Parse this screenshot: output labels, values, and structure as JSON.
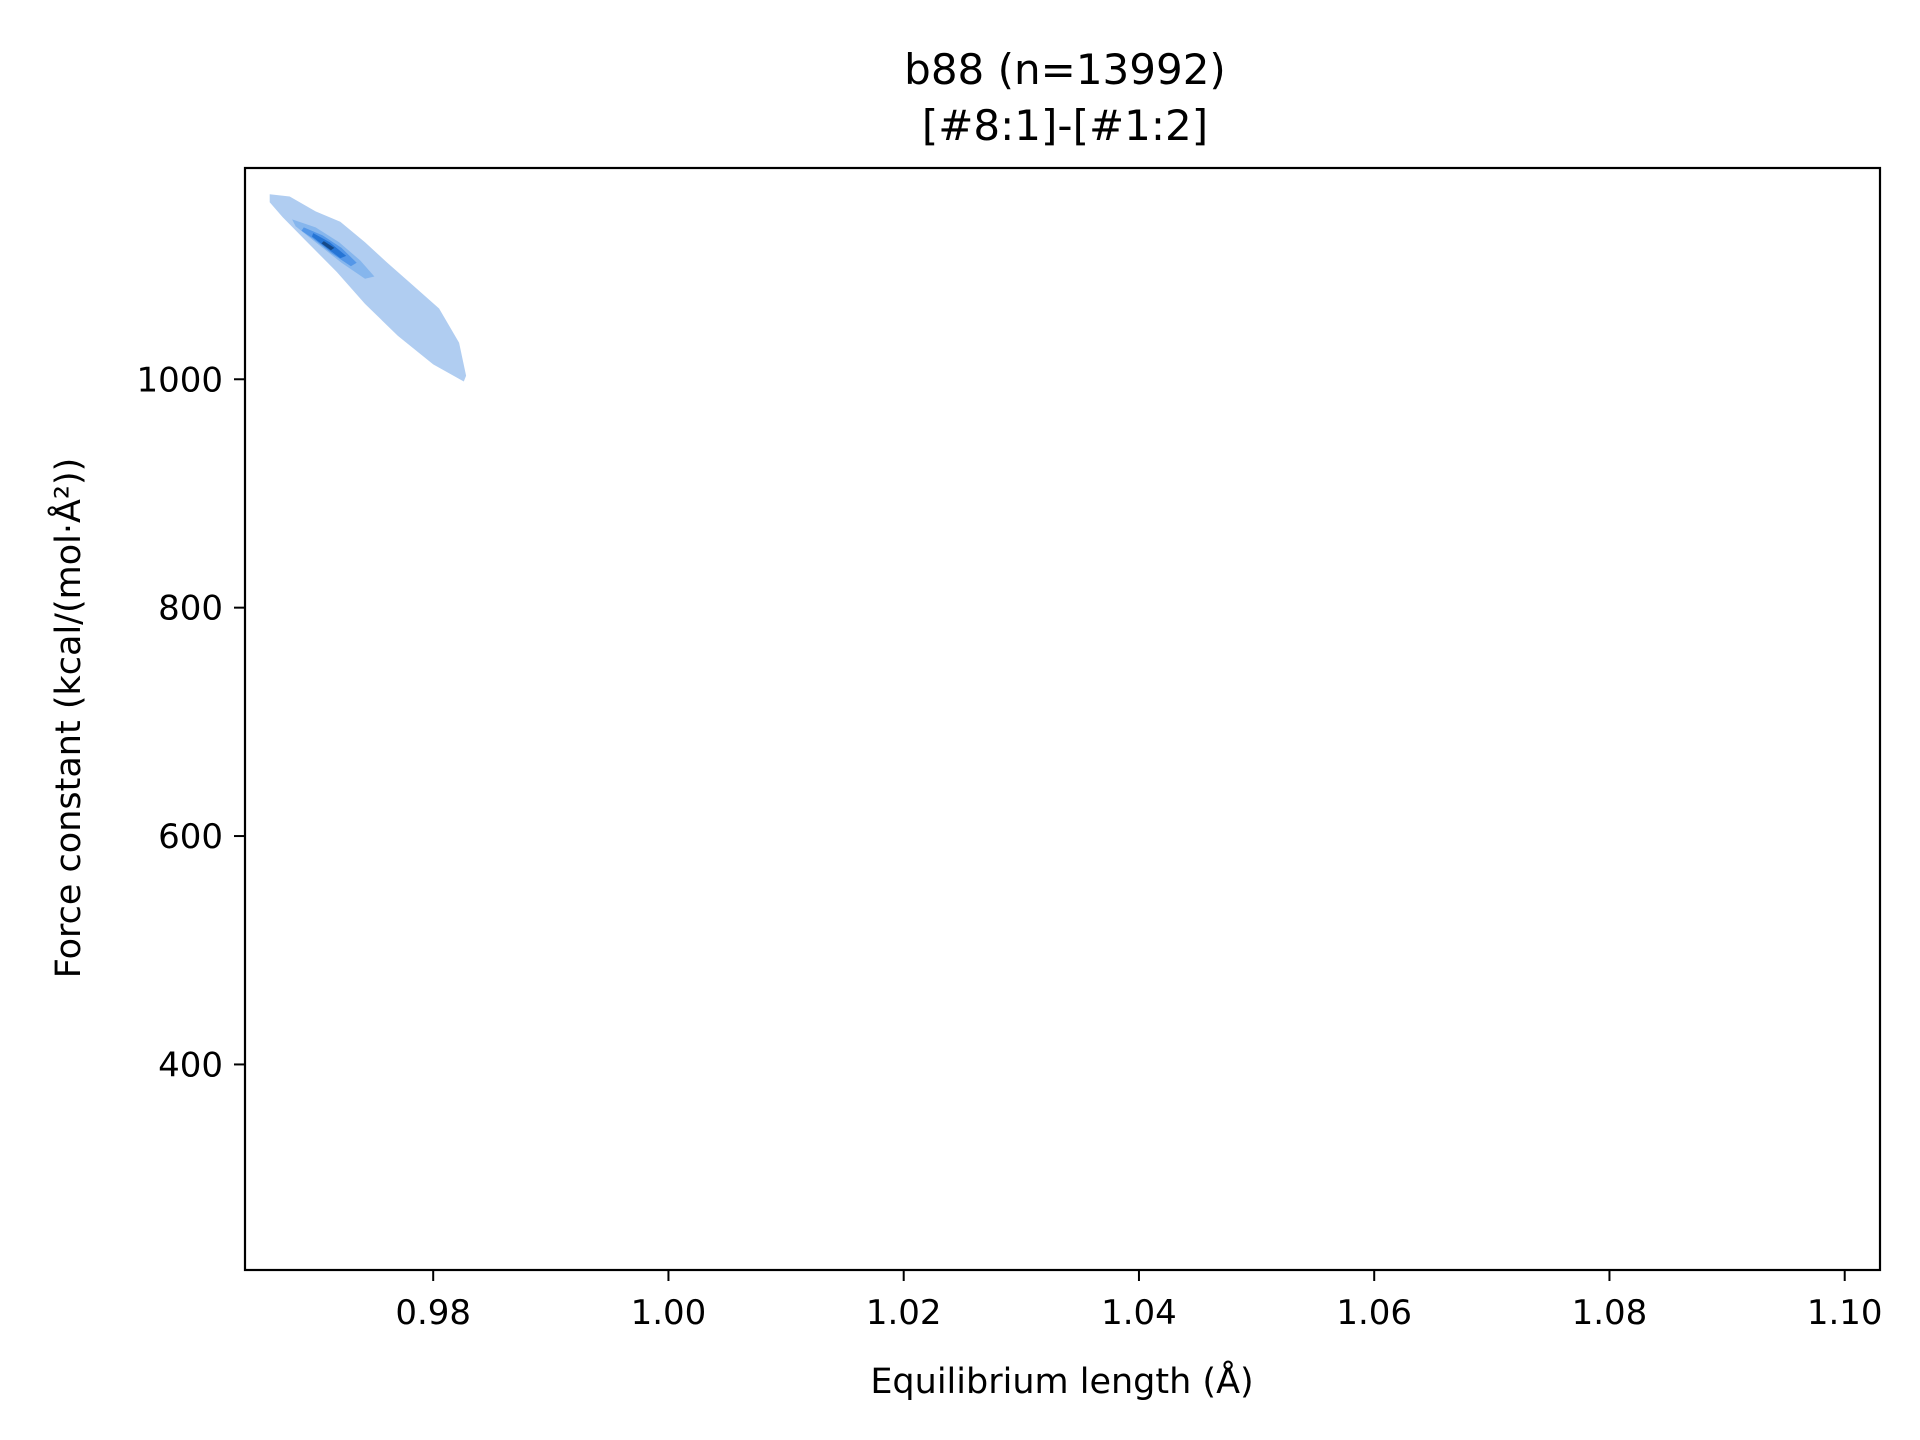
{
  "chart_data": {
    "type": "kde-contour",
    "title": "b88 (n=13992)",
    "subtitle": "[#8:1]-[#1:2]",
    "xlabel": "Equilibrium length (Å)",
    "ylabel": "Force constant (kcal/(mol·Å²))",
    "xlim": [
      0.964,
      1.103
    ],
    "ylim": [
      220,
      1185
    ],
    "grid": false,
    "x_ticks": [
      {
        "value": 0.98,
        "label": "0.98"
      },
      {
        "value": 1.0,
        "label": "1.00"
      },
      {
        "value": 1.02,
        "label": "1.02"
      },
      {
        "value": 1.04,
        "label": "1.04"
      },
      {
        "value": 1.06,
        "label": "1.06"
      },
      {
        "value": 1.08,
        "label": "1.08"
      },
      {
        "value": 1.1,
        "label": "1.10"
      }
    ],
    "y_ticks": [
      {
        "value": 400,
        "label": "400"
      },
      {
        "value": 600,
        "label": "600"
      },
      {
        "value": 800,
        "label": "800"
      },
      {
        "value": 1000,
        "label": "1000"
      }
    ],
    "density_levels": [
      {
        "level": 1,
        "color": "#a7c8f0",
        "points": [
          [
            0.9661,
            1162
          ],
          [
            0.9678,
            1160
          ],
          [
            0.97,
            1147
          ],
          [
            0.9721,
            1138
          ],
          [
            0.9742,
            1120
          ],
          [
            0.9761,
            1102
          ],
          [
            0.9782,
            1083
          ],
          [
            0.9805,
            1062
          ],
          [
            0.9822,
            1032
          ],
          [
            0.9828,
            1003
          ],
          [
            0.9826,
            998
          ],
          [
            0.98,
            1013
          ],
          [
            0.977,
            1038
          ],
          [
            0.9742,
            1066
          ],
          [
            0.9718,
            1094
          ],
          [
            0.9693,
            1120
          ],
          [
            0.9672,
            1142
          ],
          [
            0.9661,
            1155
          ]
        ]
      },
      {
        "level": 2,
        "color": "#7fb1ec",
        "points": [
          [
            0.968,
            1140
          ],
          [
            0.97,
            1133
          ],
          [
            0.972,
            1120
          ],
          [
            0.9738,
            1104
          ],
          [
            0.975,
            1090
          ],
          [
            0.9742,
            1088
          ],
          [
            0.9722,
            1102
          ],
          [
            0.97,
            1120
          ],
          [
            0.9683,
            1134
          ]
        ]
      },
      {
        "level": 3,
        "color": "#4b92e6",
        "points": [
          [
            0.969,
            1133
          ],
          [
            0.9706,
            1126
          ],
          [
            0.9722,
            1115
          ],
          [
            0.9735,
            1102
          ],
          [
            0.973,
            1099
          ],
          [
            0.9714,
            1110
          ],
          [
            0.9698,
            1123
          ],
          [
            0.9688,
            1130
          ]
        ]
      },
      {
        "level": 4,
        "color": "#1f6fd1",
        "points": [
          [
            0.9698,
            1128
          ],
          [
            0.9712,
            1120
          ],
          [
            0.9726,
            1108
          ],
          [
            0.9721,
            1106
          ],
          [
            0.9708,
            1116
          ],
          [
            0.9697,
            1125
          ]
        ]
      },
      {
        "level": 5,
        "color": "#14427a",
        "points": [
          [
            0.9707,
            1121
          ],
          [
            0.9716,
            1115
          ],
          [
            0.9713,
            1113
          ],
          [
            0.9705,
            1119
          ]
        ]
      }
    ]
  }
}
